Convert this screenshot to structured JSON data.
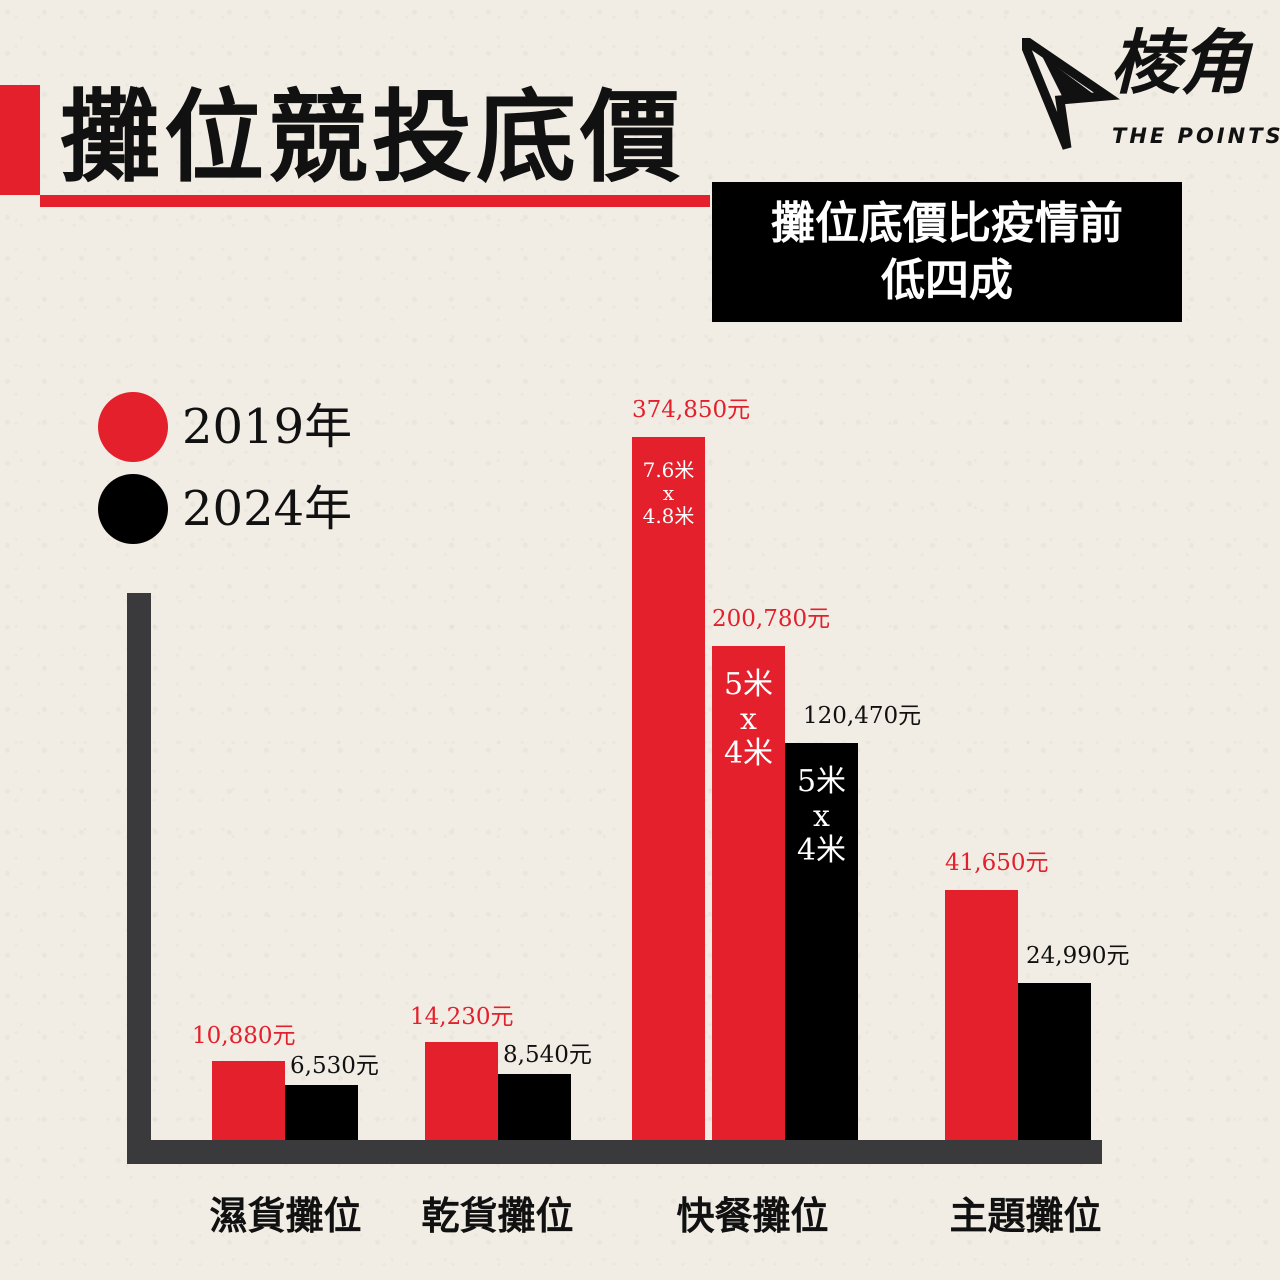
{
  "header": {
    "title": "攤位競投底價",
    "subtitle_line1": "攤位底價比疫情前",
    "subtitle_line2": "低四成"
  },
  "logo": {
    "main": "棱角",
    "sub": "THE POINTS"
  },
  "colors": {
    "red": "#e3202b",
    "black": "#000000",
    "axis": "#3a3a3d"
  },
  "chart_data": {
    "type": "bar",
    "categories": [
      "濕貨攤位",
      "乾貨攤位",
      "快餐攤位",
      "主題攤位"
    ],
    "series": [
      {
        "name": "2019年",
        "color": "#e3202b"
      },
      {
        "name": "2024年",
        "color": "#000000"
      }
    ],
    "bars": [
      {
        "category": "濕貨攤位",
        "series": "2019年",
        "value": 10880,
        "label": "10,880元"
      },
      {
        "category": "濕貨攤位",
        "series": "2024年",
        "value": 6530,
        "label": "6,530元"
      },
      {
        "category": "乾貨攤位",
        "series": "2019年",
        "value": 14230,
        "label": "14,230元"
      },
      {
        "category": "乾貨攤位",
        "series": "2024年",
        "value": 8540,
        "label": "8,540元"
      },
      {
        "category": "快餐攤位",
        "series": "2019年",
        "value": 374850,
        "label": "374,850元",
        "size_label": [
          "7.6米",
          "x",
          "4.8米"
        ]
      },
      {
        "category": "快餐攤位",
        "series": "2019年",
        "value": 200780,
        "label": "200,780元",
        "size_label": [
          "5米",
          "x",
          "4米"
        ]
      },
      {
        "category": "快餐攤位",
        "series": "2024年",
        "value": 120470,
        "label": "120,470元",
        "size_label": [
          "5米",
          "x",
          "4米"
        ]
      },
      {
        "category": "主題攤位",
        "series": "2019年",
        "value": 41650,
        "label": "41,650元"
      },
      {
        "category": "主題攤位",
        "series": "2024年",
        "value": 24990,
        "label": "24,990元"
      }
    ],
    "legend": "top-left",
    "value_unit": "元"
  }
}
